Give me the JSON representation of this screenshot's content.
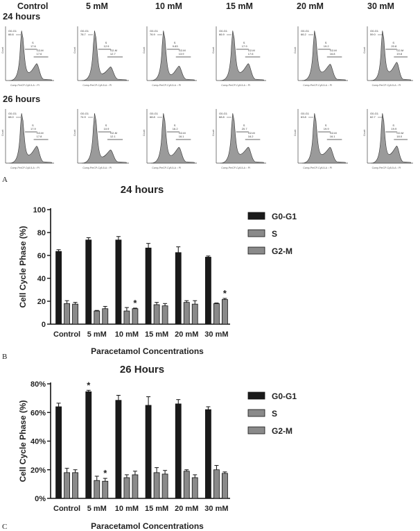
{
  "panel_a": {
    "letter": "A",
    "column_headers": [
      "Control",
      "5 mM",
      "10 mM",
      "15 mM",
      "20 mM",
      "30 mM"
    ],
    "rows": [
      {
        "label": "24 hours",
        "x_axis_label": "Comp-PerCP-Cy5-5-A :: PI",
        "y_axis_label": "Count",
        "histograms": [
          {
            "g0g1": "66.6",
            "s": "17.6",
            "g2m": "17.6"
          },
          {
            "g0g1": "78.7",
            "s": "12.9",
            "g2m": "12.7"
          },
          {
            "g0g1": "76.9",
            "s": "9.83",
            "g2m": "13.9"
          },
          {
            "g0g1": "66.9",
            "s": "17.9",
            "g2m": "17.6"
          },
          {
            "g0g1": "66.2",
            "s": "19.2",
            "g2m": "16.8"
          },
          {
            "g0g1": "59.0",
            "s": "20.8",
            "g2m": "19.8"
          }
        ]
      },
      {
        "label": "26 hours",
        "x_axis_label": "Comp-PerCP-Cy5-5-A :: PI",
        "y_axis_label": "Count",
        "histograms": [
          {
            "g0g1": "68.0",
            "s": "17.9",
            "g2m": "17.8"
          },
          {
            "g0g1": "74.9",
            "s": "10.9",
            "g2m": "12.1"
          },
          {
            "g0g1": "68.8",
            "s": "16.2",
            "g2m": "16.1"
          },
          {
            "g0g1": "68.8",
            "s": "20.7",
            "g2m": "16.2"
          },
          {
            "g0g1": "63.8",
            "s": "19.9",
            "g2m": "16.1"
          },
          {
            "g0g1": "62.7",
            "s": "19.9",
            "g2m": "18.0"
          }
        ]
      }
    ],
    "gate_names": {
      "g0g1": "G0-G1",
      "s": "S",
      "g2m": "G2-M"
    }
  },
  "chart_data": [
    {
      "type": "bar",
      "letter": "B",
      "title": "24 hours",
      "xlabel": "Paracetamol Concentrations",
      "ylabel": "Cell Cycle Phase (%)",
      "ylim": [
        0,
        100
      ],
      "yticks": [
        0,
        20,
        40,
        60,
        80,
        100
      ],
      "y_tick_suffix": "",
      "categories": [
        "Control",
        "5 mM",
        "10 mM",
        "15 mM",
        "20 mM",
        "30 mM"
      ],
      "series": [
        {
          "name": "G0-G1",
          "color": "#1a1a1a",
          "values": [
            63.5,
            73.5,
            73.5,
            66.5,
            62.5,
            58.5
          ],
          "errors": [
            1.5,
            2,
            3,
            4,
            5,
            1
          ]
        },
        {
          "name": "S",
          "color": "#8a8a8a",
          "values": [
            18,
            11.5,
            11.5,
            17,
            19,
            18
          ],
          "errors": [
            2.5,
            0.5,
            3,
            2,
            1.5,
            0.5
          ]
        },
        {
          "name": "G2-M",
          "color": "#8a8a8a",
          "values": [
            17.5,
            13.5,
            13.5,
            16,
            17.5,
            21.5
          ],
          "errors": [
            1.5,
            2,
            0.5,
            2,
            3,
            1
          ]
        }
      ],
      "significance": [
        {
          "category": "10 mM",
          "series": "G2-M",
          "mark": "*"
        },
        {
          "category": "30 mM",
          "series": "G2-M",
          "mark": "*"
        }
      ],
      "legend_position": "right",
      "grid": false
    },
    {
      "type": "bar",
      "letter": "C",
      "title": "26 Hours",
      "xlabel": "Paracetamol Concentrations",
      "ylabel": "Cell Cycle Phase (%)",
      "ylim": [
        0,
        80
      ],
      "yticks": [
        0,
        20,
        40,
        60,
        80
      ],
      "y_tick_suffix": "%",
      "categories": [
        "Control",
        "5 mM",
        "10 mM",
        "15 mM",
        "20 mM",
        "30 mM"
      ],
      "series": [
        {
          "name": "G0-G1",
          "color": "#1a1a1a",
          "values": [
            64,
            74.5,
            68.5,
            65,
            66,
            62
          ],
          "errors": [
            2.5,
            1,
            3.5,
            6,
            3,
            2
          ]
        },
        {
          "name": "S",
          "color": "#8a8a8a",
          "values": [
            18,
            12.5,
            14.5,
            18,
            19,
            20
          ],
          "errors": [
            3,
            3,
            2,
            3.5,
            1,
            3
          ]
        },
        {
          "name": "G2-M",
          "color": "#8a8a8a",
          "values": [
            18,
            12,
            16.5,
            17,
            14.5,
            17.5
          ],
          "errors": [
            2,
            2,
            2.5,
            2.5,
            2,
            1
          ]
        }
      ],
      "significance": [
        {
          "category": "5 mM",
          "series": "G0-G1",
          "mark": "*"
        },
        {
          "category": "5 mM",
          "series": "G2-M",
          "mark": "*"
        }
      ],
      "legend_position": "right",
      "grid": false
    }
  ]
}
